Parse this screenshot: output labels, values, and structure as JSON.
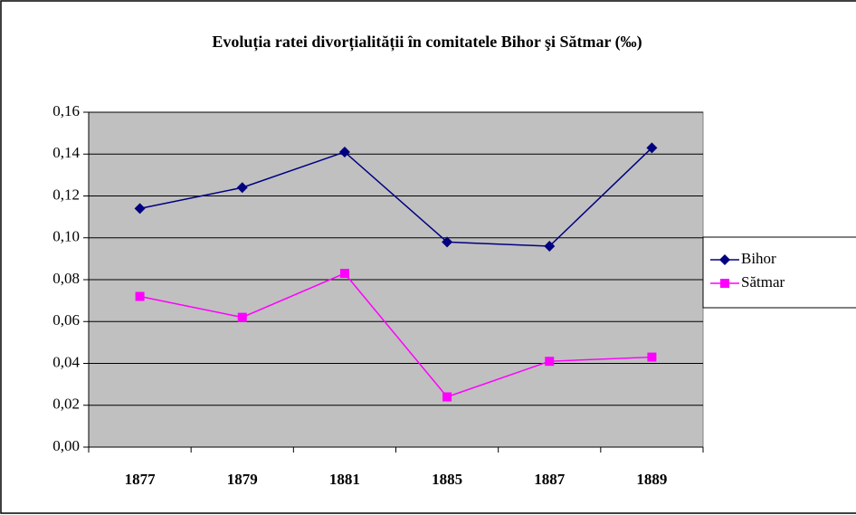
{
  "chart_data": {
    "type": "line",
    "title": "Evoluția ratei divorțialității în comitatele Bihor şi Sătmar (‰)",
    "categories": [
      "1877",
      "1879",
      "1881",
      "1885",
      "1887",
      "1889"
    ],
    "series": [
      {
        "name": "Bihor",
        "color": "#000080",
        "marker": "diamond",
        "values": [
          0.114,
          0.124,
          0.141,
          0.098,
          0.096,
          0.143
        ]
      },
      {
        "name": "Sătmar",
        "color": "#ff00ff",
        "marker": "square",
        "values": [
          0.072,
          0.062,
          0.083,
          0.024,
          0.041,
          0.043
        ]
      }
    ],
    "ylim": [
      0,
      0.16
    ],
    "yticks": [
      {
        "value": 0,
        "label": "0,00"
      },
      {
        "value": 0.02,
        "label": "0,02"
      },
      {
        "value": 0.04,
        "label": "0,04"
      },
      {
        "value": 0.06,
        "label": "0,06"
      },
      {
        "value": 0.08,
        "label": "0,08"
      },
      {
        "value": 0.1,
        "label": "0,10"
      },
      {
        "value": 0.12,
        "label": "0,12"
      },
      {
        "value": 0.14,
        "label": "0,14"
      },
      {
        "value": 0.16,
        "label": "0,16"
      }
    ],
    "grid": true,
    "legend": "right",
    "plot_background": "#c0c0c0"
  }
}
